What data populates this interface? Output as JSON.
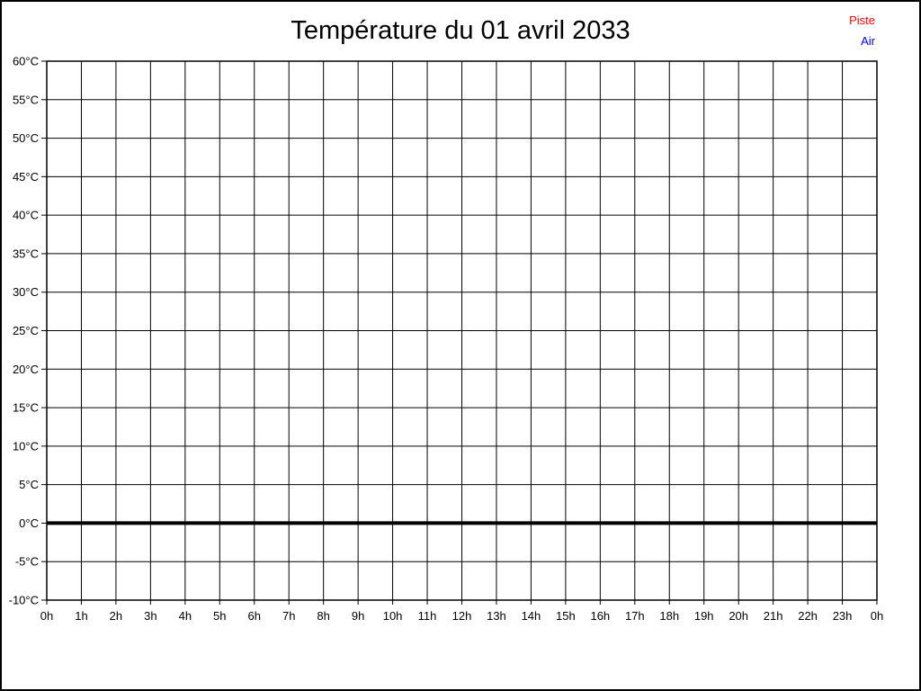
{
  "window": {
    "background_color": "#ffffff",
    "border_color": "#000000"
  },
  "header": {
    "title": "Température du 01 avril 2033"
  },
  "legend": {
    "position": "top-right",
    "items": [
      {
        "label": "Piste",
        "color": "#ff0000"
      },
      {
        "label": "Air",
        "color": "#0000ff"
      }
    ]
  },
  "chart_data": {
    "type": "line",
    "title": "Température du 01 avril 2033",
    "xlabel": "",
    "ylabel": "",
    "xlim_hours": [
      0,
      24
    ],
    "ylim": [
      -10,
      60
    ],
    "y_tick_step": 5,
    "grid": true,
    "grid_color": "#000000",
    "axis_color": "#000000",
    "label_color": "#000000",
    "legend_position": "top-right",
    "x_tick_labels": [
      "0h",
      "1h",
      "2h",
      "3h",
      "4h",
      "5h",
      "6h",
      "7h",
      "8h",
      "9h",
      "10h",
      "11h",
      "12h",
      "13h",
      "14h",
      "15h",
      "16h",
      "17h",
      "18h",
      "19h",
      "20h",
      "21h",
      "22h",
      "23h",
      "0h"
    ],
    "y_ticks": [
      {
        "value": 60,
        "label": "60°C"
      },
      {
        "value": 55,
        "label": "55°C"
      },
      {
        "value": 50,
        "label": "50°C"
      },
      {
        "value": 45,
        "label": "45°C"
      },
      {
        "value": 40,
        "label": "40°C"
      },
      {
        "value": 35,
        "label": "35°C"
      },
      {
        "value": 30,
        "label": "30°C"
      },
      {
        "value": 25,
        "label": "25°C"
      },
      {
        "value": 20,
        "label": "20°C"
      },
      {
        "value": 15,
        "label": "15°C"
      },
      {
        "value": 10,
        "label": "10°C"
      },
      {
        "value": 5,
        "label": "5°C"
      },
      {
        "value": 0,
        "label": "0°C"
      },
      {
        "value": -5,
        "label": "-5°C"
      },
      {
        "value": -10,
        "label": "-10°C"
      }
    ],
    "zero_reference_line": {
      "value": 0,
      "color": "#000000",
      "width": 4
    },
    "series": [
      {
        "name": "Piste",
        "color": "#ff0000",
        "x": [],
        "values": []
      },
      {
        "name": "Air",
        "color": "#0000ff",
        "x": [],
        "values": []
      }
    ]
  }
}
